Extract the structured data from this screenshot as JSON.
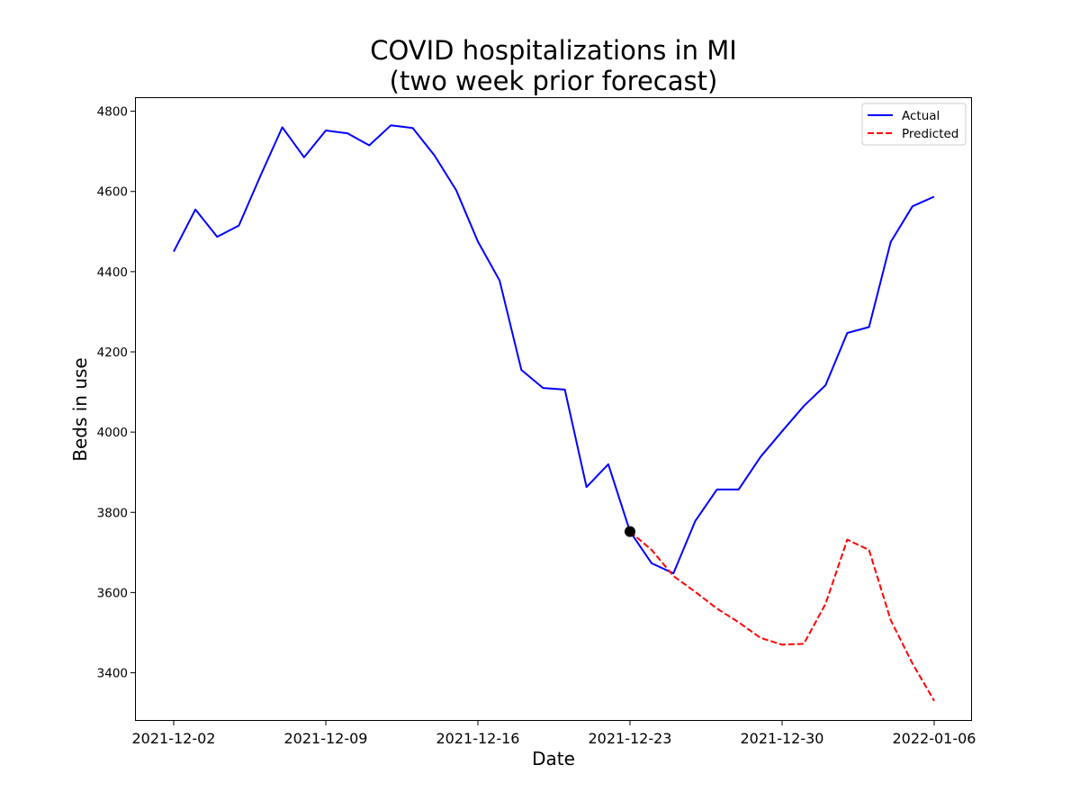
{
  "chart_data": {
    "type": "line",
    "title": "COVID hospitalizations in MI\n(two week prior forecast)",
    "xlabel": "Date",
    "ylabel": "Beds in use",
    "x_start": "2021-12-02",
    "xlim": [
      "2021-12-02",
      "2022-01-06"
    ],
    "ylim": [
      3280,
      4835
    ],
    "x_ticks": [
      "2021-12-02",
      "2021-12-09",
      "2021-12-16",
      "2021-12-23",
      "2021-12-30",
      "2022-01-06"
    ],
    "y_ticks": [
      3400,
      3600,
      3800,
      4000,
      4200,
      4400,
      4600,
      4800
    ],
    "legend_position": "top-right",
    "grid": false,
    "series": [
      {
        "name": "Actual",
        "color": "#0000ff",
        "style": "solid",
        "x": [
          "2021-12-02",
          "2021-12-03",
          "2021-12-04",
          "2021-12-05",
          "2021-12-06",
          "2021-12-07",
          "2021-12-08",
          "2021-12-09",
          "2021-12-10",
          "2021-12-11",
          "2021-12-12",
          "2021-12-13",
          "2021-12-14",
          "2021-12-15",
          "2021-12-16",
          "2021-12-17",
          "2021-12-18",
          "2021-12-19",
          "2021-12-20",
          "2021-12-21",
          "2021-12-22",
          "2021-12-23",
          "2021-12-24",
          "2021-12-25",
          "2021-12-26",
          "2021-12-27",
          "2021-12-28",
          "2021-12-29",
          "2021-12-30",
          "2021-12-31",
          "2022-01-01",
          "2022-01-02",
          "2022-01-03",
          "2022-01-04",
          "2022-01-05",
          "2022-01-06"
        ],
        "values": [
          4450,
          4555,
          4487,
          4515,
          4640,
          4760,
          4685,
          4752,
          4745,
          4715,
          4765,
          4758,
          4690,
          4603,
          4475,
          4378,
          4155,
          4110,
          4106,
          3863,
          3920,
          3752,
          3673,
          3648,
          3778,
          3857,
          3857,
          3938,
          4002,
          4065,
          4117,
          4247,
          4262,
          4474,
          4563,
          4587
        ]
      },
      {
        "name": "Predicted",
        "color": "#ff0000",
        "style": "dashed",
        "x": [
          "2021-12-23",
          "2021-12-24",
          "2021-12-25",
          "2021-12-26",
          "2021-12-27",
          "2021-12-28",
          "2021-12-29",
          "2021-12-30",
          "2021-12-31",
          "2022-01-01",
          "2022-01-02",
          "2022-01-03",
          "2022-01-04",
          "2022-01-05",
          "2022-01-06"
        ],
        "values": [
          3752,
          3706,
          3641,
          3602,
          3560,
          3526,
          3487,
          3470,
          3472,
          3572,
          3732,
          3706,
          3531,
          3423,
          3330
        ]
      }
    ],
    "annotations": [
      {
        "type": "marker",
        "shape": "circle",
        "color": "#000000",
        "x": "2021-12-23",
        "y": 3752
      }
    ]
  }
}
